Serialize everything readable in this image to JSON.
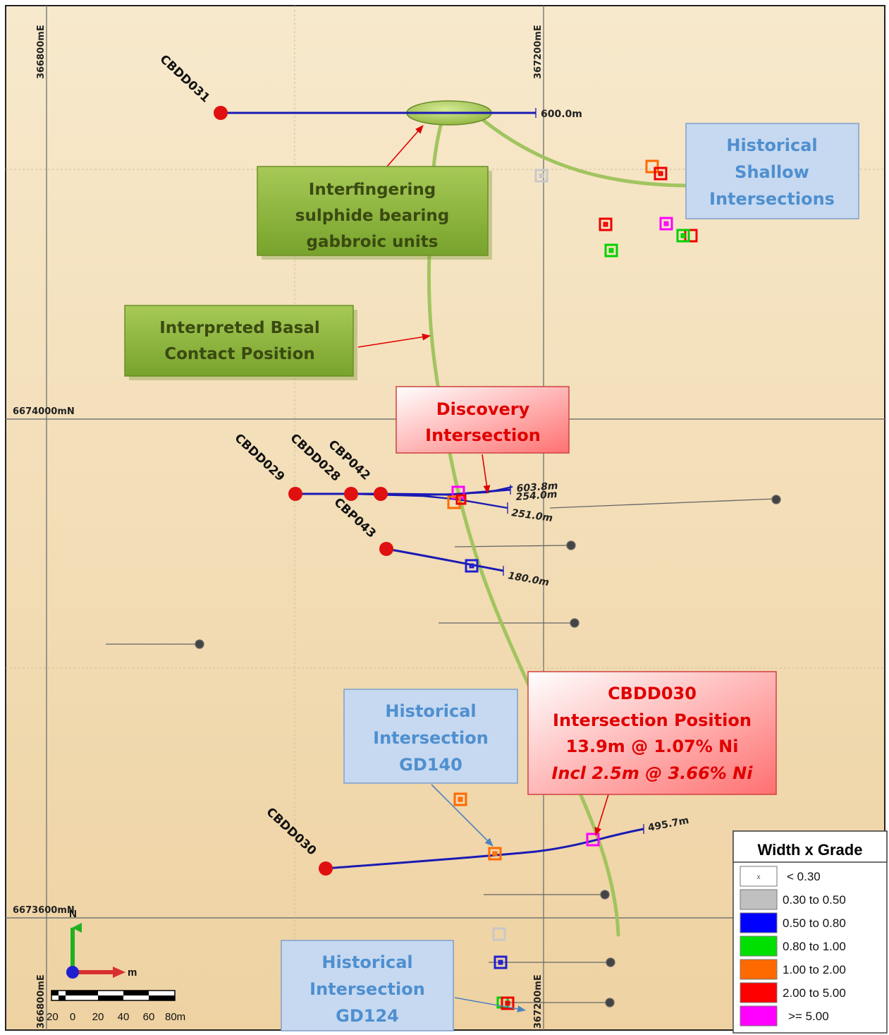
{
  "colors": {
    "map_background": "#f3ddb6",
    "drill_hole_trace": "#1a1ab4",
    "collar": "#e01010",
    "contact_line": "#9dc35a",
    "callout_green": "#8db33c",
    "callout_blue": "#c6d9f1",
    "callout_red": "#ff8080",
    "leader_red": "#e00000",
    "leader_blue": "#4f81bd"
  },
  "grid": {
    "easting_labels": [
      "366800mE",
      "367200mE",
      "366800mE",
      "367200mE"
    ],
    "northing_labels": [
      "6674000mN",
      "6673600mN"
    ]
  },
  "drill_holes": [
    {
      "name": "CBDD031",
      "depth_label": "600.0m"
    },
    {
      "name": "CBDD029",
      "depth_label": "603.8m"
    },
    {
      "name": "CBDD028",
      "depth_label": "254.0m"
    },
    {
      "name": "CBP042",
      "depth_label": "251.0m"
    },
    {
      "name": "CBP043",
      "depth_label": "180.0m"
    },
    {
      "name": "CBDD030",
      "depth_label": "495.7m"
    }
  ],
  "callouts": {
    "gabbroic": [
      "Interfingering",
      "sulphide bearing",
      "gabbroic units"
    ],
    "basal": [
      "Interpreted Basal",
      "Contact Position"
    ],
    "historical_shallow": [
      "Historical",
      "Shallow",
      "Intersections"
    ],
    "discovery": [
      "Discovery",
      "Intersection"
    ],
    "cbdd030": [
      "CBDD030",
      "Intersection Position",
      "13.9m @ 1.07% Ni"
    ],
    "cbdd030_incl": "Incl 2.5m @ 3.66% Ni",
    "gd140": [
      "Historical",
      "Intersection",
      "GD140"
    ],
    "gd124": [
      "Historical",
      "Intersection",
      "GD124"
    ]
  },
  "legend": {
    "title": "Width x Grade",
    "items": [
      {
        "label": "< 0.30",
        "color": "#ffffff",
        "glyph": "x"
      },
      {
        "label": "0.30 to 0.50",
        "color": "#c0c0c0",
        "glyph": ""
      },
      {
        "label": "0.50 to 0.80",
        "color": "#0000ff",
        "glyph": ""
      },
      {
        "label": "0.80 to 1.00",
        "color": "#00e000",
        "glyph": ""
      },
      {
        "label": "1.00 to 2.00",
        "color": "#ff6a00",
        "glyph": ""
      },
      {
        "label": "2.00 to 5.00",
        "color": "#ff0000",
        "glyph": ""
      },
      {
        "label": ">= 5.00",
        "color": "#ff00ff",
        "glyph": ""
      }
    ]
  },
  "scale_bar": {
    "tick_labels": [
      "20",
      "0",
      "20",
      "40",
      "60",
      "80m"
    ],
    "axis_east_label": "m",
    "axis_north_label": "N"
  }
}
